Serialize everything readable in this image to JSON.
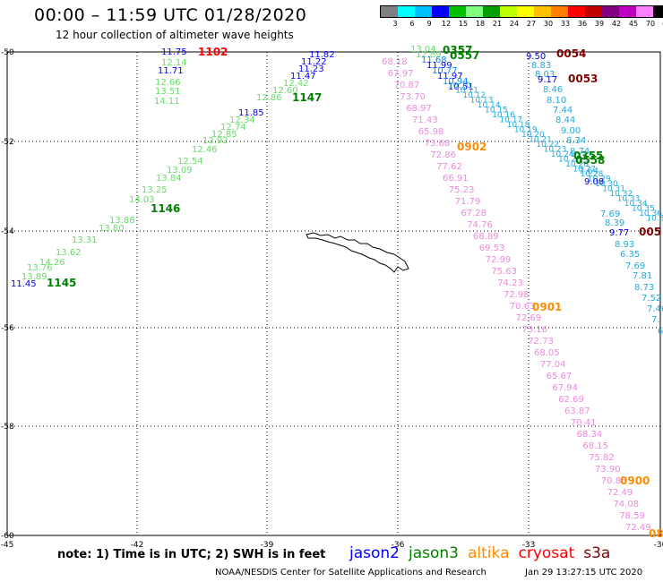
{
  "title": "00:00 – 11:59 UTC 01/28/2020",
  "subtitle": "12 hour collection of altimeter wave heights",
  "legend": {
    "colors": [
      "#808080",
      "#00ffff",
      "#00c0ff",
      "#0000ff",
      "#00c000",
      "#80ff80",
      "#00a000",
      "#c0ff00",
      "#ffff00",
      "#ffc000",
      "#ff8000",
      "#ff0000",
      "#c00000",
      "#800080",
      "#c000c0",
      "#ff80ff",
      "#000000"
    ],
    "ticks": [
      "3",
      "6",
      "9",
      "12",
      "15",
      "18",
      "21",
      "24",
      "27",
      "30",
      "33",
      "36",
      "39",
      "42",
      "45",
      "70",
      "(ft)"
    ]
  },
  "note": "note: 1) Time is in UTC; 2) SWH is in feet",
  "satellites": [
    {
      "name": "jason2",
      "color": "#0000ff"
    },
    {
      "name": "jason3",
      "color": "#008000"
    },
    {
      "name": "altika",
      "color": "#ff8c00"
    },
    {
      "name": "cryosat",
      "color": "#ff0000"
    },
    {
      "name": "s3a",
      "color": "#800000"
    }
  ],
  "footer": {
    "center": "NOAA/NESDIS Center for Satellite Applications and Research",
    "timestamp": "Jan 29 13:27:15 UTC 2020"
  },
  "map": {
    "lon_ticks": [
      "-45",
      "-42",
      "-39",
      "-36",
      "-33",
      "-30"
    ],
    "lat_ticks": [
      "-50",
      "-52",
      "-54",
      "-56",
      "-58",
      "-60"
    ]
  },
  "track_a": {
    "times": [
      {
        "text": "1102",
        "color": "#ff0000"
      },
      {
        "text": "1147",
        "color": "#008000"
      },
      {
        "text": "1146",
        "color": "#008000"
      },
      {
        "text": "1145",
        "color": "#008000"
      }
    ],
    "values": [
      {
        "v": "11.75",
        "c": "#0000ff"
      },
      {
        "v": "12.14",
        "c": "#66dd66"
      },
      {
        "v": "11.71",
        "c": "#0000ff"
      },
      {
        "v": "12.66",
        "c": "#66dd66"
      },
      {
        "v": "13.51",
        "c": "#66dd66"
      },
      {
        "v": "14.11",
        "c": "#66dd66"
      },
      {
        "v": "11.82",
        "c": "#0000ff"
      },
      {
        "v": "11.22",
        "c": "#0000ff"
      },
      {
        "v": "11.23",
        "c": "#0000ff"
      },
      {
        "v": "11.47",
        "c": "#0000ff"
      },
      {
        "v": "12.42",
        "c": "#66dd66"
      },
      {
        "v": "12.60",
        "c": "#66dd66"
      },
      {
        "v": "12.86",
        "c": "#66dd66"
      },
      {
        "v": "11.85",
        "c": "#0000ff"
      },
      {
        "v": "12.34",
        "c": "#66dd66"
      },
      {
        "v": "12.74",
        "c": "#66dd66"
      },
      {
        "v": "12.85",
        "c": "#66dd66"
      },
      {
        "v": "12.92",
        "c": "#66dd66"
      },
      {
        "v": "12.46",
        "c": "#66dd66"
      },
      {
        "v": "12.54",
        "c": "#66dd66"
      },
      {
        "v": "13.09",
        "c": "#66dd66"
      },
      {
        "v": "13.84",
        "c": "#66dd66"
      },
      {
        "v": "13.25",
        "c": "#66dd66"
      },
      {
        "v": "14.03",
        "c": "#66dd66"
      },
      {
        "v": "13.88",
        "c": "#66dd66"
      },
      {
        "v": "13.80",
        "c": "#66dd66"
      },
      {
        "v": "13.31",
        "c": "#66dd66"
      },
      {
        "v": "13.62",
        "c": "#66dd66"
      },
      {
        "v": "14.26",
        "c": "#66dd66"
      },
      {
        "v": "13.76",
        "c": "#66dd66"
      },
      {
        "v": "13.89",
        "c": "#66dd66"
      },
      {
        "v": "11.45",
        "c": "#0000ff"
      }
    ]
  },
  "track_b": {
    "times": [
      {
        "text": "0902",
        "color": "#ff8c00"
      },
      {
        "text": "0901",
        "color": "#ff8c00"
      },
      {
        "text": "0900",
        "color": "#ff8c00"
      },
      {
        "text": "08",
        "color": "#ff8c00"
      }
    ],
    "values": [
      "68.18",
      "67.97",
      "70.87",
      "73.70",
      "68.97",
      "71.43",
      "65.98",
      "73.68",
      "72.86",
      "77.62",
      "66.91",
      "75.23",
      "71.79",
      "67.28",
      "74.76",
      "68.89",
      "69.53",
      "72.99",
      "75.63",
      "74.23",
      "72.98",
      "70.63",
      "72.69",
      "73.16",
      "72.73",
      "68.05",
      "77.04",
      "65.67",
      "67.94",
      "62.69",
      "63.87",
      "70.41",
      "68.34",
      "68.15",
      "75.82",
      "73.90",
      "70.85",
      "72.49",
      "74.08",
      "78.59",
      "72.49"
    ]
  },
  "track_c": {
    "times": [
      {
        "text": "0357",
        "color": "#008000"
      },
      {
        "text": "0557",
        "color": "#008000"
      },
      {
        "text": "0355",
        "color": "#008000"
      },
      {
        "text": "0558",
        "color": "#008000"
      }
    ],
    "values": [
      "13.04",
      "12.89",
      "11.68",
      "11.99",
      "10.77",
      "11.97",
      "10.94",
      "10.51"
    ]
  },
  "track_d": {
    "times": [
      {
        "text": "0054",
        "color": "#800000"
      },
      {
        "text": "0053",
        "color": "#800000"
      },
      {
        "text": "005",
        "color": "#800000"
      }
    ],
    "values": [
      "9.50",
      "8.83",
      "8.03",
      "9.17",
      "8.46",
      "8.10",
      "7.44",
      "8.44",
      "9.00",
      "8.34",
      "8.74",
      "7.64",
      "9.08",
      "7.69",
      "8.39",
      "9.77",
      "8.93",
      "6.35",
      "7.69",
      "7.81",
      "8.73",
      "7.52",
      "7.46",
      "7.",
      "6"
    ]
  }
}
